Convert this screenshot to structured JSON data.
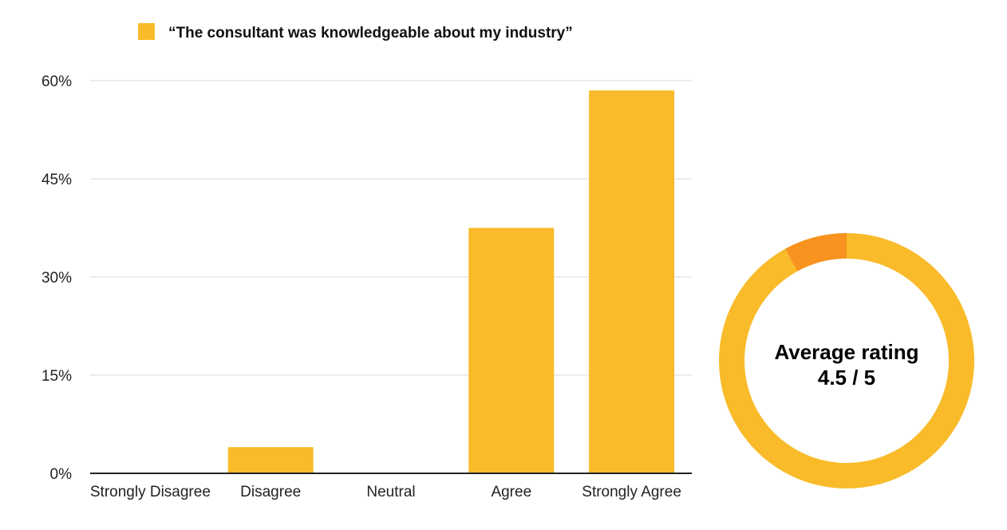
{
  "chart_data": [
    {
      "type": "bar",
      "legend": [
        {
          "label": "“The consultant was knowledgeable about my industry”",
          "color": "#F9BB2A"
        }
      ],
      "categories": [
        "Strongly Disagree",
        "Disagree",
        "Neutral",
        "Agree",
        "Strongly Agree"
      ],
      "series": [
        {
          "name": "“The consultant was knowledgeable about my industry”",
          "values": [
            0,
            4,
            0,
            37.5,
            58.5
          ]
        }
      ],
      "ylim": [
        0,
        60
      ],
      "yticks": [
        0,
        15,
        30,
        45,
        60
      ],
      "ytick_labels": [
        "0%",
        "15%",
        "30%",
        "45%",
        "60%"
      ],
      "grid": true,
      "legend_position": "top-left",
      "colors": {
        "bar": "#F9BB2A",
        "grid": "#D9D9D9",
        "axis": "#222222"
      }
    },
    {
      "type": "pie",
      "style": "donut",
      "slices": [
        {
          "value": 92,
          "color": "#F9BB2A"
        },
        {
          "value": 8,
          "color": "#F7931E"
        }
      ],
      "center_text": [
        "Average rating",
        "4.5 / 5"
      ]
    }
  ]
}
